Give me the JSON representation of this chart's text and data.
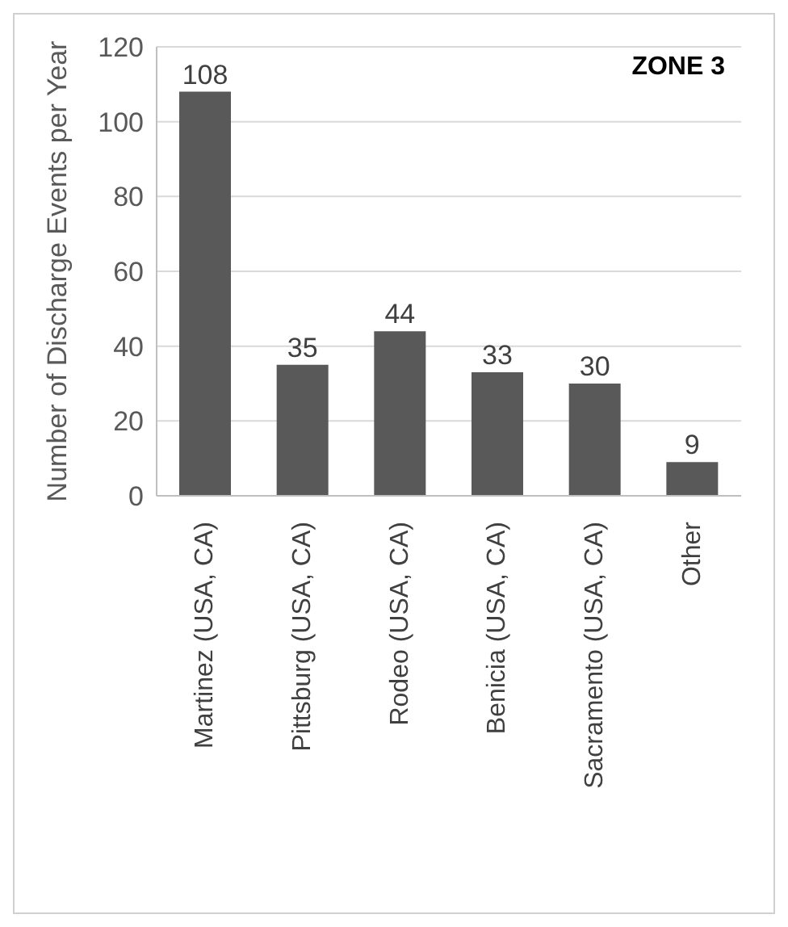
{
  "chart_data": {
    "type": "bar",
    "ylabel": "Number of Discharge Events per Year",
    "categories": [
      "Martinez (USA, CA)",
      "Pittsburg (USA, CA)",
      "Rodeo (USA, CA)",
      "Benicia (USA, CA)",
      "Sacramento (USA, CA)",
      "Other"
    ],
    "values": [
      108,
      35,
      44,
      33,
      30,
      9
    ],
    "color": "#595959",
    "ylim": [
      0,
      120
    ],
    "yticks": [
      0,
      20,
      40,
      60,
      80,
      100,
      120
    ],
    "grid": "y",
    "data_labels": true,
    "annotations": [
      "ZONE 3"
    ]
  }
}
